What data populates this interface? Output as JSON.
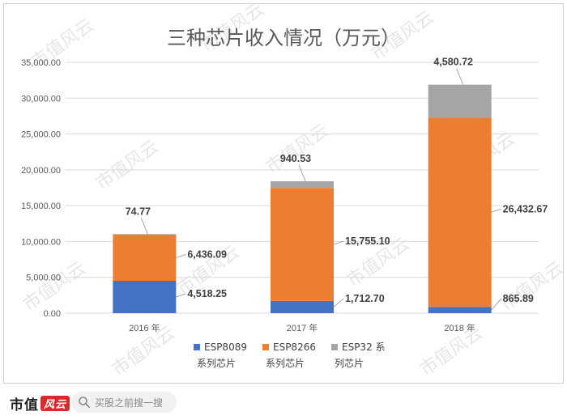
{
  "chart_data": {
    "type": "bar",
    "stacked": true,
    "title": "三种芯片收入情况（万元）",
    "categories": [
      "2016 年",
      "2017 年",
      "2018 年"
    ],
    "series": [
      {
        "name": "ESP8089 系列芯片",
        "color": "#4472c4",
        "values": [
          4518.25,
          1712.7,
          865.89
        ],
        "labels": [
          "4,518.25",
          "1,712.70",
          "865.89"
        ]
      },
      {
        "name": "ESP8266 系列芯片",
        "color": "#ed7d31",
        "values": [
          6436.09,
          15755.1,
          26432.67
        ],
        "labels": [
          "6,436.09",
          "15,755.10",
          "26,432.67"
        ]
      },
      {
        "name": "ESP32 系列芯片",
        "color": "#a5a5a5",
        "values": [
          74.77,
          940.53,
          4580.72
        ],
        "labels": [
          "74.77",
          "940.53",
          "4,580.72"
        ]
      }
    ],
    "legend_lines": [
      [
        "ESP8089",
        "系列芯片"
      ],
      [
        "ESP8266",
        "系列芯片"
      ],
      [
        "ESP32 系",
        "列芯片"
      ]
    ],
    "ylim": [
      0,
      35000
    ],
    "yticks": [
      0,
      5000,
      10000,
      15000,
      20000,
      25000,
      30000,
      35000
    ],
    "ytick_labels": [
      "0.00",
      "5,000.00",
      "10,000.00",
      "15,000.00",
      "20,000.00",
      "25,000.00",
      "30,000.00",
      "35,000.00"
    ],
    "grid": true,
    "legend_position": "bottom"
  },
  "watermark_text": "市值风云",
  "footer": {
    "brand": "市值",
    "brand_mark": "风云",
    "search_placeholder": "买股之前搜一搜",
    "search_icon": "search-icon"
  }
}
